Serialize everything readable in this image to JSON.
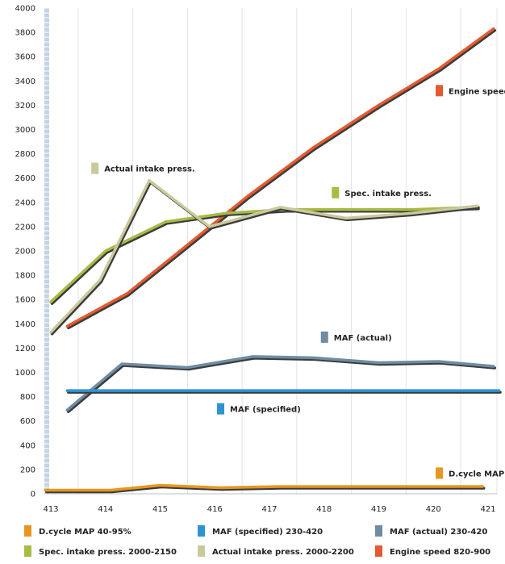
{
  "chart_data": {
    "type": "line",
    "title": "",
    "xlabel": "",
    "ylabel": "",
    "ylim": [
      0,
      4000
    ],
    "yticks": [
      0,
      200,
      400,
      600,
      800,
      1000,
      1200,
      1400,
      1600,
      1800,
      2000,
      2200,
      2400,
      2600,
      2800,
      3000,
      3200,
      3400,
      3600,
      3800,
      4000
    ],
    "xlim": [
      413,
      421
    ],
    "xticks": [
      413,
      414,
      415,
      416,
      417,
      418,
      419,
      420,
      421
    ],
    "grid": "vertical",
    "series": [
      {
        "name": "Engine speed 820-900",
        "color": "#e45a2e",
        "label": "Engine speed",
        "points": [
          [
            413.3,
            1380
          ],
          [
            414.4,
            1650
          ],
          [
            415.5,
            2050
          ],
          [
            416.6,
            2450
          ],
          [
            417.8,
            2850
          ],
          [
            419.0,
            3200
          ],
          [
            420.1,
            3500
          ],
          [
            421.1,
            3830
          ]
        ]
      },
      {
        "name": "Spec. intake press. 2000-2150",
        "color": "#a7bb45",
        "label": "Spec. intake press.",
        "points": [
          [
            413.0,
            1580
          ],
          [
            414.0,
            2000
          ],
          [
            415.1,
            2240
          ],
          [
            416.2,
            2310
          ],
          [
            417.3,
            2340
          ],
          [
            418.5,
            2340
          ],
          [
            419.6,
            2340
          ],
          [
            420.8,
            2360
          ]
        ]
      },
      {
        "name": "Actual intake press. 2000-2200",
        "color": "#c9c99c",
        "label": "Actual intake press.",
        "points": [
          [
            413.0,
            1330
          ],
          [
            413.9,
            1760
          ],
          [
            414.8,
            2580
          ],
          [
            415.9,
            2200
          ],
          [
            417.2,
            2360
          ],
          [
            418.4,
            2270
          ],
          [
            419.6,
            2310
          ],
          [
            420.8,
            2370
          ]
        ]
      },
      {
        "name": "MAF (actual) 230-420",
        "color": "#6f8ca3",
        "label": "MAF (actual)",
        "points": [
          [
            413.3,
            690
          ],
          [
            414.3,
            1070
          ],
          [
            415.5,
            1040
          ],
          [
            416.7,
            1130
          ],
          [
            417.8,
            1120
          ],
          [
            419.0,
            1080
          ],
          [
            420.1,
            1090
          ],
          [
            421.1,
            1050
          ]
        ]
      },
      {
        "name": "MAF (specified) 230-420",
        "color": "#2d94d4",
        "label": "MAF (specified)",
        "points": [
          [
            413.3,
            850
          ],
          [
            421.2,
            850
          ]
        ]
      },
      {
        "name": "D.cycle MAP 40-95%",
        "color": "#e8961e",
        "label": "D.cycle MAP",
        "points": [
          [
            412.9,
            30
          ],
          [
            414.1,
            30
          ],
          [
            415.0,
            70
          ],
          [
            416.1,
            50
          ],
          [
            417.2,
            60
          ],
          [
            418.4,
            60
          ],
          [
            419.6,
            60
          ],
          [
            420.9,
            60
          ]
        ]
      }
    ],
    "annotations": [
      {
        "text": "Engine speed",
        "x": 420.1,
        "y": 3320,
        "color": "#e45a2e"
      },
      {
        "text": "Actual intake press.",
        "x": 413.8,
        "y": 2680,
        "color": "#c9c99c"
      },
      {
        "text": "Spec. intake press.",
        "x": 418.2,
        "y": 2480,
        "color": "#a7bb45"
      },
      {
        "text": "MAF (actual)",
        "x": 418.0,
        "y": 1290,
        "color": "#6f8ca3"
      },
      {
        "text": "MAF (specified)",
        "x": 416.1,
        "y": 700,
        "color": "#2d94d4"
      },
      {
        "text": "D.cycle MAP",
        "x": 420.1,
        "y": 170,
        "color": "#e8961e"
      }
    ],
    "legend": {
      "placement": "bottom",
      "items": [
        {
          "text": "D.cycle MAP 40-95%",
          "color": "#e8961e"
        },
        {
          "text": "MAF (specified) 230-420",
          "color": "#2d94d4"
        },
        {
          "text": "MAF (actual) 230-420",
          "color": "#6f8ca3"
        },
        {
          "text": "Spec. intake press. 2000-2150",
          "color": "#a7bb45"
        },
        {
          "text": "Actual intake press. 2000-2200",
          "color": "#c9c99c"
        },
        {
          "text": "Engine speed 820-900",
          "color": "#e45a2e"
        }
      ]
    }
  }
}
